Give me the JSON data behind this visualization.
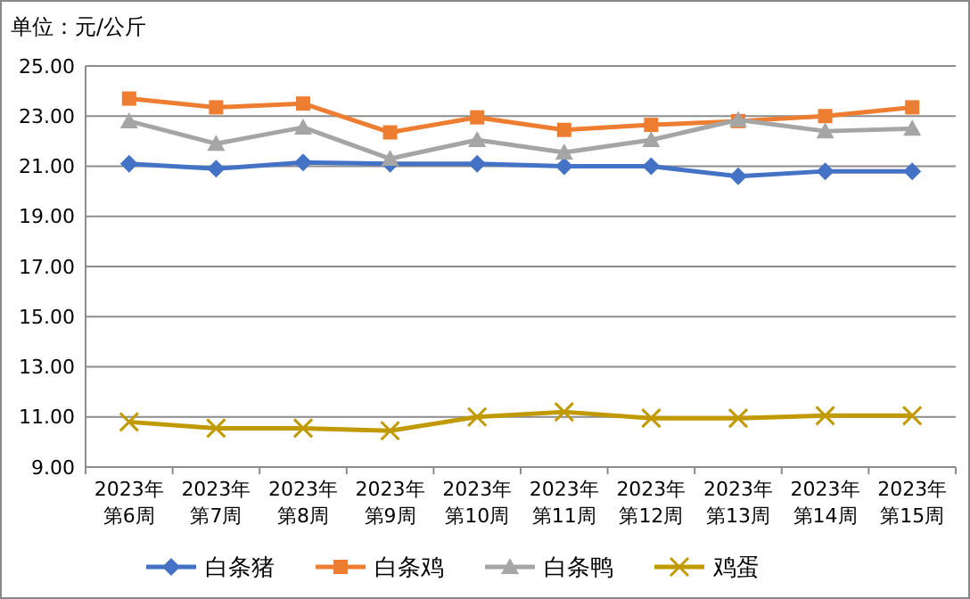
{
  "chart_data": {
    "type": "line",
    "title": "单位：元/公斤",
    "categories": [
      "2023年第6周",
      "2023年第7周",
      "2023年第8周",
      "2023年第9周",
      "2023年第10周",
      "2023年第11周",
      "2023年第12周",
      "2023年第13周",
      "2023年第14周",
      "2023年第15周"
    ],
    "series": [
      {
        "name": "白条猪",
        "color": "#4472c4",
        "marker": "diamond",
        "values": [
          21.1,
          20.9,
          21.15,
          21.1,
          21.1,
          21.0,
          21.0,
          20.6,
          20.8,
          20.8
        ]
      },
      {
        "name": "白条鸡",
        "color": "#ed7d31",
        "marker": "square",
        "values": [
          23.7,
          23.35,
          23.5,
          22.35,
          22.95,
          22.45,
          22.65,
          22.8,
          23.0,
          23.35
        ]
      },
      {
        "name": "白条鸭",
        "color": "#a5a5a5",
        "marker": "triangle",
        "values": [
          22.8,
          21.9,
          22.55,
          21.3,
          22.05,
          21.55,
          22.05,
          22.85,
          22.4,
          22.5
        ]
      },
      {
        "name": "鸡蛋",
        "color": "#c09a00",
        "marker": "cross",
        "values": [
          10.8,
          10.55,
          10.55,
          10.45,
          11.0,
          11.2,
          10.95,
          10.95,
          11.05,
          11.05
        ]
      }
    ],
    "ylim": [
      9,
      25
    ],
    "yticks": [
      {
        "value": 9,
        "label": "9.00"
      },
      {
        "value": 11,
        "label": "11.00"
      },
      {
        "value": 13,
        "label": "13.00"
      },
      {
        "value": 15,
        "label": "15.00"
      },
      {
        "value": 17,
        "label": "17.00"
      },
      {
        "value": 19,
        "label": "19.00"
      },
      {
        "value": 21,
        "label": "21.00"
      },
      {
        "value": 23,
        "label": "23.00"
      },
      {
        "value": 25,
        "label": "25.00"
      }
    ],
    "grid": "y",
    "legend": "bottom"
  }
}
